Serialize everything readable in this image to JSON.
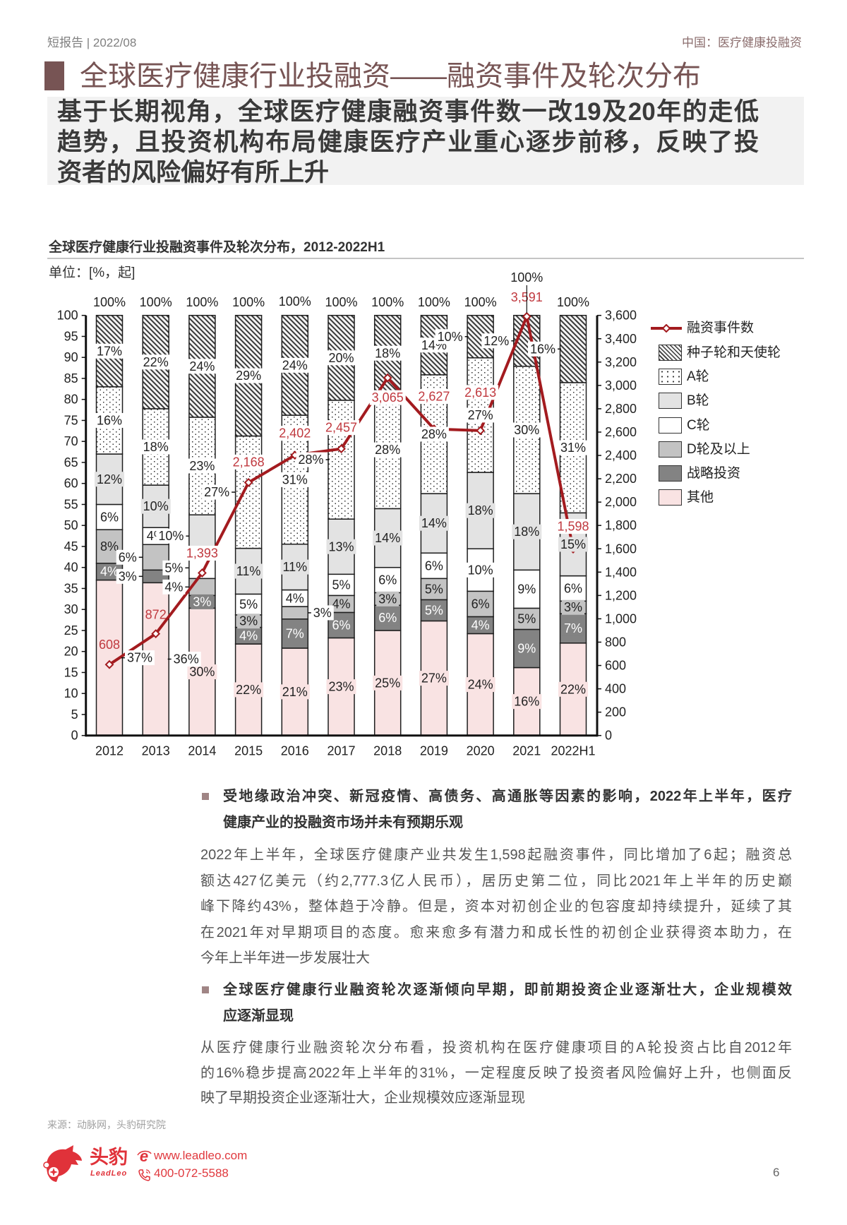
{
  "header": {
    "left": "短报告 | 2022/08",
    "right": "中国：医疗健康投融资"
  },
  "title": "全球医疗健康行业投融资——融资事件及轮次分布",
  "key_message_lines": [
    "基于长期视角，全球医疗健康融资事件数一改19及20年的走低",
    "趋势，且投资机构布局健康医疗产业重心逐步前移，反映了投",
    "资者的风险偏好有所上升"
  ],
  "chart_data": {
    "type": "bar",
    "stacked": true,
    "title": "全球医疗健康行业投融资事件及轮次分布，2012-2022H1",
    "unit": "单位：[%，起]",
    "xlabel": "",
    "ylabel": "%",
    "y2label": "起",
    "grid": false,
    "categories": [
      "2012",
      "2013",
      "2014",
      "2015",
      "2016",
      "2017",
      "2018",
      "2019",
      "2020",
      "2021",
      "2022H1"
    ],
    "series": [
      {
        "key": "other",
        "name": "其他",
        "values": [
          37,
          36,
          30,
          22,
          21,
          23,
          25,
          27,
          24,
          16,
          22
        ],
        "color": "#f9e3e3",
        "label_bg": "#f9e3e3",
        "label_color": "#222222"
      },
      {
        "key": "strategic",
        "name": "战略投资",
        "values": [
          4,
          3,
          3,
          4,
          7,
          6,
          6,
          5,
          4,
          9,
          7
        ],
        "color": "#838383",
        "label_bg": "#838383",
        "label_color": "#ffffff"
      },
      {
        "key": "d_plus",
        "name": "D轮及以上",
        "values": [
          8,
          6,
          4,
          3,
          3,
          4,
          3,
          5,
          6,
          5,
          3
        ],
        "color": "#c3c3c3",
        "label_bg": "#c3c3c3",
        "label_color": "#222222"
      },
      {
        "key": "c",
        "name": "C轮",
        "values": [
          6,
          4,
          5,
          5,
          4,
          5,
          6,
          6,
          10,
          9,
          6
        ],
        "color": "#ffffff",
        "label_bg": "#ffffff",
        "label_color": "#222222"
      },
      {
        "key": "b",
        "name": "B轮",
        "values": [
          12,
          10,
          10,
          11,
          11,
          13,
          14,
          14,
          18,
          18,
          15
        ],
        "color": "#e3e3e3",
        "label_bg": "#e3e3e3",
        "label_color": "#222222"
      },
      {
        "key": "a",
        "name": "A轮",
        "values": [
          16,
          18,
          23,
          27,
          31,
          28,
          28,
          28,
          27,
          30,
          31
        ],
        "color": "#ffffff",
        "pattern": "dots",
        "label_bg": "#ffffff",
        "label_color": "#222222"
      },
      {
        "key": "seed",
        "name": "种子轮和天使轮",
        "values": [
          17,
          22,
          24,
          29,
          24,
          20,
          18,
          14,
          10,
          12,
          16
        ],
        "color": "#f4f4f4",
        "pattern": "hatch",
        "label_bg": "#ffffff",
        "label_color": "#222222"
      }
    ],
    "total_labels": [
      "100%",
      "100%",
      "100%",
      "100%",
      "100%",
      "100%",
      "100%",
      "100%",
      "100%",
      "100%",
      "100%"
    ],
    "total_label_dy": [
      -18.5,
      -18.5,
      -18.5,
      -18.5,
      -19.5,
      -18.5,
      -18.5,
      -18.5,
      -18.5,
      -53.7,
      -18.5
    ],
    "total_label_leader": [
      false,
      false,
      false,
      false,
      false,
      false,
      false,
      false,
      false,
      true,
      false
    ],
    "line_series": {
      "name": "融资事件数",
      "axis": "right",
      "values": [
        608,
        872,
        1393,
        2168,
        2402,
        2457,
        3065,
        2627,
        2613,
        3591,
        1598
      ],
      "color": "#a31b1f",
      "label_color": "#c0393f"
    },
    "count_label_dy": [
      -28,
      -27,
      -28,
      -29,
      -31,
      -30,
      28,
      -46,
      -54,
      -27,
      -32
    ],
    "count_label_bg": [
      "none",
      "none",
      "#ffffff",
      "#ffffff",
      "#ffffff",
      "#ffffff",
      "#ffffff",
      "#ffffff",
      "#ffffff",
      "#ffffff",
      "#ffffff"
    ],
    "callouts": [
      {
        "bar": 0,
        "series": "other",
        "dx": 43
      },
      {
        "bar": 1,
        "series": "other",
        "dx": 43
      },
      {
        "bar": 1,
        "series": "d_plus",
        "dx": -40
      },
      {
        "bar": 1,
        "series": "strategic",
        "dx": -40
      },
      {
        "bar": 2,
        "series": "b",
        "dx": -44
      },
      {
        "bar": 2,
        "series": "c",
        "dx": -40
      },
      {
        "bar": 2,
        "series": "d_plus",
        "dx": -40
      },
      {
        "bar": 3,
        "series": "a",
        "dx": -45
      },
      {
        "bar": 4,
        "series": "d_plus",
        "dx": 39
      },
      {
        "bar": 5,
        "series": "a",
        "dx": -43
      },
      {
        "bar": 8,
        "series": "seed",
        "dx": -43
      },
      {
        "bar": 9,
        "series": "seed",
        "dx": -43
      },
      {
        "bar": 10,
        "series": "seed",
        "dx": -43
      }
    ],
    "ylim": [
      0,
      100
    ],
    "y_ticks": [
      0,
      5,
      10,
      15,
      20,
      25,
      30,
      35,
      40,
      45,
      50,
      55,
      60,
      65,
      70,
      75,
      80,
      85,
      90,
      95,
      100
    ],
    "y2lim": [
      0,
      3600
    ],
    "y2_ticks": [
      0,
      200,
      400,
      600,
      800,
      1000,
      1200,
      1400,
      1600,
      1800,
      2000,
      2200,
      2400,
      2600,
      2800,
      3000,
      3200,
      3400,
      3600
    ],
    "legend": {
      "position": "right",
      "items": [
        {
          "label": "融资事件数",
          "swatch": "line-diamond"
        },
        {
          "label": "种子轮和天使轮",
          "swatch": "hatch"
        },
        {
          "label": "A轮",
          "swatch": "dots"
        },
        {
          "label": "B轮",
          "swatch": "#e3e3e3"
        },
        {
          "label": "C轮",
          "swatch": "#ffffff"
        },
        {
          "label": "D轮及以上",
          "swatch": "#c3c3c3"
        },
        {
          "label": "战略投资",
          "swatch": "#838383"
        },
        {
          "label": "其他",
          "swatch": "#f9e3e3"
        }
      ]
    }
  },
  "sections": [
    {
      "heading_lines": [
        "受地缘政治冲突、新冠疫情、高债务、高通胀等因素的影响，2022年上半年，医疗",
        "健康产业的投融资市场并未有预期乐观"
      ],
      "paragraph_lines": [
        "2022年上半年，全球医疗健康产业共发生1,598起融资事件，同比增加了6起；融资总",
        "额达427亿美元（约2,777.3亿人民币），居历史第二位，同比2021年上半年的历史巅",
        "峰下降约43%，整体趋于冷静。但是，资本对初创企业的包容度却持续提升，延续了其",
        "在2021年对早期项目的态度。愈来愈多有潜力和成长性的初创企业获得资本助力，在",
        "今年上半年进一步发展壮大"
      ]
    },
    {
      "heading_lines": [
        "全球医疗健康行业融资轮次逐渐倾向早期，即前期投资企业逐渐壮大，企业规模效",
        "应逐渐显现"
      ],
      "paragraph_lines": [
        "从医疗健康行业融资轮次分布看，投资机构在医疗健康项目的A轮投资占比自2012年",
        "的16%稳步提高2022年上半年的31%，一定程度反映了投资者风险偏好上升，也侧面反",
        "映了早期投资企业逐渐壮大，企业规模效应逐渐显现"
      ]
    }
  ],
  "source": "来源：动脉网，头豹研究院",
  "footer": {
    "brand_cn": "头豹",
    "brand_en": "LeadLeo",
    "website": "www.leadleo.com",
    "phone": "400-072-5588",
    "page_number": "6",
    "brand_color": "#e0323a"
  },
  "colors": {
    "title": "#775454",
    "bullet": "#a08585",
    "key_message_bg": "#f2f2f2"
  }
}
